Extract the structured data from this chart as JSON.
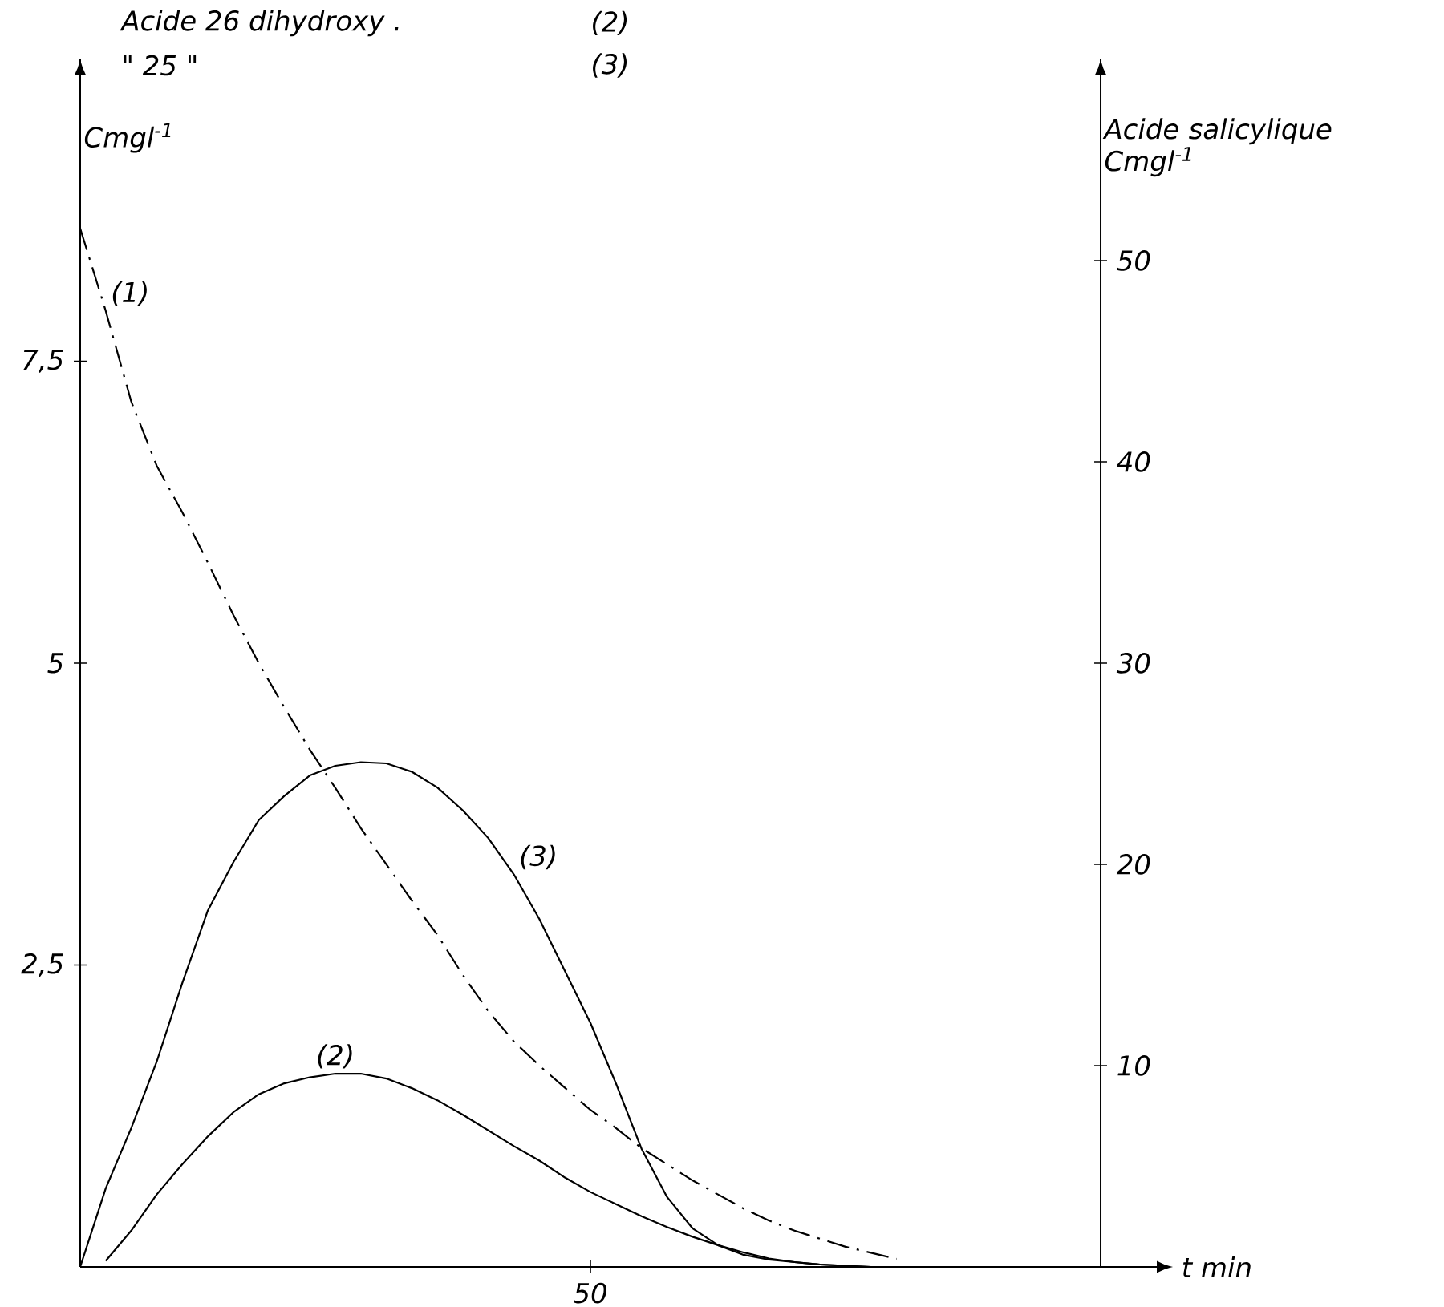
{
  "chart_data": {
    "type": "line",
    "xlabel": "t min",
    "ylabel": "Cmgl$^{-1}$",
    "y2label": "Acide salicylique Cmgl$^{-1}$",
    "categories": [
      null,
      null,
      null,
      null,
      null,
      null,
      null,
      null,
      null,
      null,
      null,
      null,
      null,
      null,
      null,
      null,
      null,
      null,
      null,
      null,
      "50",
      null,
      null,
      null,
      null,
      null,
      null,
      null,
      null,
      null,
      null,
      null,
      null,
      null,
      null,
      null,
      null,
      null,
      null,
      null,
      null
    ],
    "ylim": [
      0,
      10
    ],
    "yticks": [
      {
        "value": 2.5,
        "label": "2,5"
      },
      {
        "value": 5,
        "label": "5"
      },
      {
        "value": 7.5,
        "label": "7,5"
      }
    ],
    "y2lim": [
      0,
      60
    ],
    "y2ticks": [
      {
        "value": 10,
        "label": "10"
      },
      {
        "value": 20,
        "label": "20"
      },
      {
        "value": 30,
        "label": "30"
      },
      {
        "value": 40,
        "label": "40"
      },
      {
        "value": 50,
        "label": "50"
      }
    ],
    "series": [
      {
        "name": "(1)",
        "color": "#000000",
        "axis": "y2",
        "line_style": "dashed",
        "values": [
          51.6,
          47.5,
          43,
          39.8,
          37.5,
          35,
          32.4,
          30,
          27.8,
          25.7,
          23.8,
          21.8,
          20,
          18.2,
          16.5,
          14.5,
          12.7,
          11.2,
          10,
          8.9,
          7.8,
          6.9,
          5.9,
          5.1,
          4.3,
          3.6,
          2.9,
          2.3,
          1.8,
          1.4,
          1,
          0.7,
          0.4,
          null,
          null,
          null,
          null,
          null,
          null,
          null,
          null
        ]
      },
      {
        "name": "(2)",
        "color": "#000000",
        "axis": "y",
        "line_style": "solid",
        "values": [
          null,
          0.05,
          0.3,
          0.6,
          0.85,
          1.08,
          1.28,
          1.43,
          1.52,
          1.57,
          1.6,
          1.6,
          1.56,
          1.48,
          1.38,
          1.26,
          1.13,
          1.0,
          0.88,
          0.74,
          0.62,
          0.52,
          0.42,
          0.33,
          0.25,
          0.18,
          0.12,
          0.07,
          0.04,
          0.02,
          0.01,
          0,
          0,
          0,
          null,
          null,
          null,
          null,
          null,
          null,
          null
        ]
      },
      {
        "name": "(3)",
        "color": "#000000",
        "axis": "y",
        "line_style": "solid",
        "values": [
          0,
          0.65,
          1.15,
          1.7,
          2.35,
          2.95,
          3.35,
          3.7,
          3.9,
          4.07,
          4.15,
          4.18,
          4.17,
          4.1,
          3.97,
          3.78,
          3.55,
          3.25,
          2.88,
          2.45,
          2.02,
          1.52,
          0.98,
          0.58,
          0.32,
          0.18,
          0.1,
          0.06,
          0.04,
          0.02,
          0.01,
          0,
          0,
          0,
          null,
          null,
          null,
          null,
          null,
          null,
          null
        ]
      }
    ],
    "annotations": [
      "Acide 26 dihydroxy .",
      "(2)",
      "\"      25               \"",
      "(3)"
    ]
  }
}
